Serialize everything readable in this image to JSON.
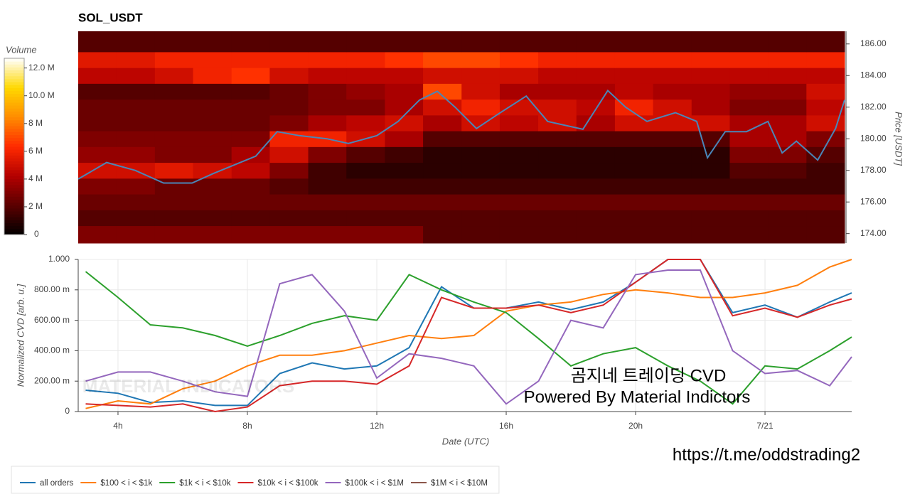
{
  "chart_data": [
    {
      "type": "heatmap",
      "title": "SOL_USDT",
      "y_label": "Price [USDT]",
      "colorbar_label": "Volume",
      "colorscale": [
        "#000000",
        "#5a0000",
        "#b30000",
        "#ff2a00",
        "#ff8c00",
        "#ffd800",
        "#ffffff"
      ],
      "xlim": [
        2.77,
        26.46
      ],
      "ylim": [
        173.4,
        186.8
      ],
      "yticks": [
        {
          "value": 174,
          "label": "174.00"
        },
        {
          "value": 176,
          "label": "176.00"
        },
        {
          "value": 178,
          "label": "178.00"
        },
        {
          "value": 180,
          "label": "180.00"
        },
        {
          "value": 182,
          "label": "182.00"
        },
        {
          "value": 184,
          "label": "184.00"
        },
        {
          "value": 186,
          "label": "186.00"
        }
      ],
      "zlim": [
        0,
        12.7
      ],
      "zticks": [
        0,
        {
          "value": 2,
          "label": "2 M"
        },
        {
          "value": 4,
          "label": "4 M"
        },
        {
          "value": 6,
          "label": "6 M"
        },
        {
          "value": 8,
          "label": "8 M"
        },
        {
          "value": 10,
          "label": "10.0 M"
        },
        {
          "value": 12,
          "label": "12.0 M"
        }
      ],
      "time_bins": [
        2.77,
        3.95,
        5.14,
        6.32,
        7.51,
        8.69,
        9.88,
        11.06,
        12.25,
        13.43,
        14.62,
        15.8,
        16.99,
        18.17,
        19.36,
        20.54,
        21.73,
        22.91,
        24.1,
        25.28,
        26.46
      ],
      "price_bins": [
        173.4,
        174.5,
        175.5,
        176.5,
        177.5,
        178.5,
        179.5,
        180.5,
        181.5,
        182.5,
        183.5,
        184.5,
        185.5,
        186.8
      ],
      "values": [
        [
          3,
          3,
          3,
          3,
          3,
          3,
          3,
          3,
          3,
          2,
          2,
          2,
          2,
          2,
          2,
          2,
          2,
          2,
          2,
          2
        ],
        [
          2,
          2,
          2,
          2,
          2,
          2,
          2,
          2,
          2,
          2,
          2,
          2,
          2,
          2,
          2,
          2,
          2,
          2,
          2,
          2
        ],
        [
          2.5,
          2.5,
          2.5,
          2.5,
          2.5,
          2.5,
          2.5,
          2.5,
          2.5,
          2.5,
          2.5,
          2.5,
          2.5,
          2.5,
          2.5,
          2.5,
          2.5,
          2.5,
          2.5,
          2.5
        ],
        [
          3,
          3,
          2.5,
          2.5,
          2.5,
          2,
          1.5,
          1.5,
          1.5,
          1.5,
          1.5,
          1.5,
          1.5,
          1.5,
          1.5,
          1.5,
          1.5,
          1.5,
          1.5,
          1.5
        ],
        [
          5,
          5,
          5.5,
          5,
          4.5,
          3,
          1.5,
          1,
          1,
          1,
          1,
          1,
          1,
          1,
          1,
          1,
          1,
          2,
          2,
          1.5
        ],
        [
          3.5,
          3.5,
          3,
          3,
          4,
          5,
          3,
          2,
          1.5,
          1,
          1,
          1,
          1,
          1,
          1,
          1,
          1,
          3,
          3,
          2
        ],
        [
          3,
          3,
          3,
          3,
          3,
          6,
          6,
          5,
          4,
          2,
          2,
          2,
          2,
          2,
          2,
          2,
          2,
          4,
          4,
          3
        ],
        [
          2.5,
          2.5,
          2.5,
          2.5,
          2.5,
          3,
          4,
          4.5,
          5,
          4,
          5,
          4.5,
          5,
          4,
          5,
          5,
          5,
          4,
          4,
          5
        ],
        [
          2.5,
          2.5,
          2.5,
          2.5,
          2.5,
          2.5,
          3,
          3,
          4,
          5,
          6,
          5,
          5,
          4.5,
          6,
          5,
          4,
          3,
          3,
          4.5
        ],
        [
          2,
          2,
          2,
          2,
          2,
          2.5,
          3,
          3.5,
          4,
          7,
          5,
          4,
          4,
          4,
          4.5,
          4,
          4,
          3.5,
          3.5,
          5
        ],
        [
          4.5,
          4.5,
          5,
          6,
          6.5,
          5,
          4.5,
          4.5,
          4.5,
          5,
          5,
          5,
          4.5,
          4.5,
          4.5,
          4.5,
          4.5,
          4.5,
          4.5,
          4.5
        ],
        [
          5.5,
          5.5,
          6,
          6,
          6,
          6,
          6,
          6,
          6.5,
          7,
          7,
          6.5,
          6,
          6,
          6,
          6,
          6,
          6,
          6,
          6
        ],
        [
          2,
          2,
          2,
          2,
          2,
          2,
          2,
          2,
          2,
          2,
          2,
          2,
          2,
          2,
          2,
          2,
          2,
          2,
          2,
          2
        ]
      ],
      "price_line": {
        "color": "#4a86b8",
        "x": [
          2.77,
          3.65,
          4.53,
          5.41,
          6.29,
          6.95,
          7.6,
          8.26,
          8.92,
          9.6,
          10.46,
          11.12,
          12.0,
          12.66,
          13.32,
          13.87,
          14.42,
          15.08,
          15.74,
          16.62,
          17.28,
          18.37,
          19.14,
          19.69,
          20.35,
          21.23,
          21.89,
          22.22,
          22.77,
          23.43,
          24.09,
          24.53,
          24.97,
          25.63,
          26.18,
          26.46
        ],
        "values": [
          177.45,
          178.5,
          178.0,
          177.2,
          177.2,
          177.8,
          178.35,
          178.9,
          180.45,
          180.2,
          180.0,
          179.7,
          180.2,
          181.1,
          182.45,
          183.0,
          182.0,
          180.65,
          181.55,
          182.7,
          181.1,
          180.6,
          183.05,
          182.0,
          181.1,
          181.65,
          181.1,
          178.8,
          180.45,
          180.45,
          181.1,
          179.1,
          179.85,
          178.65,
          180.65,
          182.45
        ]
      }
    },
    {
      "type": "line",
      "y_label": "Normalized CVD [arb. u.]",
      "x_label": "Date (UTC)",
      "xlim": [
        2.77,
        26.68
      ],
      "xticks": [
        {
          "value": 4,
          "label": "4h"
        },
        {
          "value": 8,
          "label": "8h"
        },
        {
          "value": 12,
          "label": "12h"
        },
        {
          "value": 16,
          "label": "16h"
        },
        {
          "value": 20,
          "label": "20h"
        },
        {
          "value": 24,
          "label": "7/21"
        }
      ],
      "ylim": [
        0,
        1
      ],
      "yticks": [
        0,
        {
          "value": 0.2,
          "label": "200.00 m"
        },
        {
          "value": 0.4,
          "label": "400.00 m"
        },
        {
          "value": 0.6,
          "label": "600.00 m"
        },
        {
          "value": 0.8,
          "label": "800.00 m"
        },
        {
          "value": 1,
          "label": "1.000"
        }
      ],
      "grid": true,
      "legend": "bottom-left",
      "x": [
        3,
        4,
        5,
        6,
        7,
        8,
        9,
        10,
        11,
        12,
        13,
        14,
        15,
        16,
        17,
        18,
        19,
        20,
        21,
        22,
        23,
        24,
        25,
        26,
        26.68
      ],
      "series": [
        {
          "name": "all orders",
          "color": "#1f77b4",
          "values": [
            0.14,
            0.12,
            0.06,
            0.07,
            0.04,
            0.04,
            0.25,
            0.32,
            0.28,
            0.3,
            0.42,
            0.82,
            0.68,
            0.68,
            0.72,
            0.67,
            0.72,
            0.85,
            1.0,
            1.0,
            0.65,
            0.7,
            0.62,
            0.72,
            0.78
          ]
        },
        {
          "name": "$100 < i < $1k",
          "color": "#ff7f0e",
          "values": [
            0.02,
            0.07,
            0.05,
            0.15,
            0.2,
            0.3,
            0.37,
            0.37,
            0.4,
            0.45,
            0.5,
            0.48,
            0.5,
            0.66,
            0.7,
            0.72,
            0.77,
            0.8,
            0.78,
            0.75,
            0.75,
            0.78,
            0.83,
            0.95,
            1.0
          ]
        },
        {
          "name": "$1k < i < $10k",
          "color": "#2ca02c",
          "values": [
            0.92,
            0.75,
            0.57,
            0.55,
            0.5,
            0.43,
            0.5,
            0.58,
            0.63,
            0.6,
            0.9,
            0.8,
            0.72,
            0.65,
            0.48,
            0.3,
            0.38,
            0.42,
            0.3,
            0.2,
            0.05,
            0.3,
            0.28,
            0.4,
            0.49
          ]
        },
        {
          "name": "$10k < i < $100k",
          "color": "#d62728",
          "values": [
            0.05,
            0.04,
            0.03,
            0.05,
            0.0,
            0.03,
            0.17,
            0.2,
            0.2,
            0.18,
            0.3,
            0.75,
            0.68,
            0.68,
            0.7,
            0.65,
            0.7,
            0.85,
            1.0,
            1.0,
            0.63,
            0.68,
            0.62,
            0.7,
            0.74
          ]
        },
        {
          "name": "$100k < i < $1M",
          "color": "#9467bd",
          "values": [
            0.2,
            0.26,
            0.26,
            0.2,
            0.13,
            0.1,
            0.84,
            0.9,
            0.66,
            0.22,
            0.38,
            0.35,
            0.3,
            0.05,
            0.2,
            0.6,
            0.55,
            0.9,
            0.93,
            0.93,
            0.4,
            0.25,
            0.27,
            0.17,
            0.36
          ]
        },
        {
          "name": "$1M < i < $10M",
          "color": "#8c564b",
          "values": [
            null,
            null,
            null,
            null,
            null,
            null,
            null,
            null,
            null,
            null,
            null,
            null,
            null,
            null,
            null,
            null,
            null,
            null,
            null,
            null,
            null,
            null,
            null,
            null,
            null
          ]
        }
      ],
      "watermark": "MATERIAL INDICATORS",
      "annotations": [
        "곰지네 트레이딩 CVD",
        "Powered By Material Indictors"
      ],
      "credit": "https://t.me/oddstrading2"
    }
  ]
}
